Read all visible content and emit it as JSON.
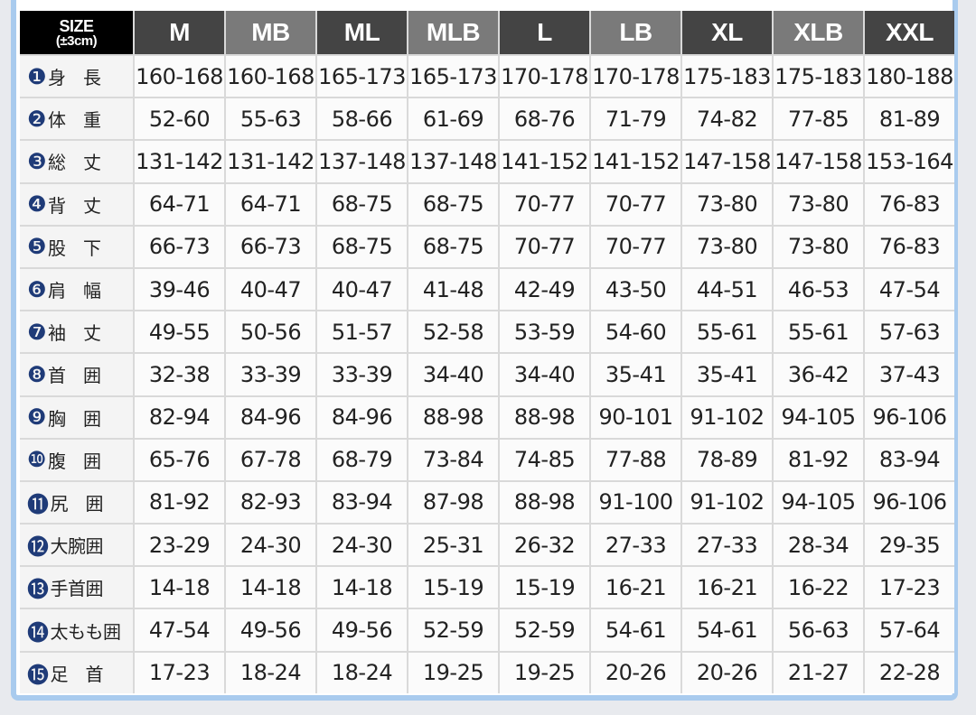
{
  "header": {
    "size_label": "SIZE",
    "tolerance": "(±3cm)",
    "columns": [
      "M",
      "MB",
      "ML",
      "MLB",
      "L",
      "LB",
      "XL",
      "XLB",
      "XXL"
    ]
  },
  "rows": [
    {
      "mark": "❶",
      "label": "身　長",
      "values": [
        "160-168",
        "160-168",
        "165-173",
        "165-173",
        "170-178",
        "170-178",
        "175-183",
        "175-183",
        "180-188"
      ]
    },
    {
      "mark": "❷",
      "label": "体　重",
      "values": [
        "52-60",
        "55-63",
        "58-66",
        "61-69",
        "68-76",
        "71-79",
        "74-82",
        "77-85",
        "81-89"
      ]
    },
    {
      "mark": "❸",
      "label": "総　丈",
      "values": [
        "131-142",
        "131-142",
        "137-148",
        "137-148",
        "141-152",
        "141-152",
        "147-158",
        "147-158",
        "153-164"
      ]
    },
    {
      "mark": "❹",
      "label": "背　丈",
      "values": [
        "64-71",
        "64-71",
        "68-75",
        "68-75",
        "70-77",
        "70-77",
        "73-80",
        "73-80",
        "76-83"
      ]
    },
    {
      "mark": "❺",
      "label": "股　下",
      "values": [
        "66-73",
        "66-73",
        "68-75",
        "68-75",
        "70-77",
        "70-77",
        "73-80",
        "73-80",
        "76-83"
      ]
    },
    {
      "mark": "❻",
      "label": "肩　幅",
      "values": [
        "39-46",
        "40-47",
        "40-47",
        "41-48",
        "42-49",
        "43-50",
        "44-51",
        "46-53",
        "47-54"
      ]
    },
    {
      "mark": "❼",
      "label": "袖　丈",
      "values": [
        "49-55",
        "50-56",
        "51-57",
        "52-58",
        "53-59",
        "54-60",
        "55-61",
        "55-61",
        "57-63"
      ]
    },
    {
      "mark": "❽",
      "label": "首　囲",
      "values": [
        "32-38",
        "33-39",
        "33-39",
        "34-40",
        "34-40",
        "35-41",
        "35-41",
        "36-42",
        "37-43"
      ]
    },
    {
      "mark": "❾",
      "label": "胸　囲",
      "values": [
        "82-94",
        "84-96",
        "84-96",
        "88-98",
        "88-98",
        "90-101",
        "91-102",
        "94-105",
        "96-106"
      ]
    },
    {
      "mark": "❿",
      "label": "腹　囲",
      "values": [
        "65-76",
        "67-78",
        "68-79",
        "73-84",
        "74-85",
        "77-88",
        "78-89",
        "81-92",
        "83-94"
      ]
    },
    {
      "mark": "⓫",
      "label": "尻　囲",
      "values": [
        "81-92",
        "82-93",
        "83-94",
        "87-98",
        "88-98",
        "91-100",
        "91-102",
        "94-105",
        "96-106"
      ]
    },
    {
      "mark": "⓬",
      "label": "大腕囲",
      "values": [
        "23-29",
        "24-30",
        "24-30",
        "25-31",
        "26-32",
        "27-33",
        "27-33",
        "28-34",
        "29-35"
      ]
    },
    {
      "mark": "⓭",
      "label": "手首囲",
      "values": [
        "14-18",
        "14-18",
        "14-18",
        "15-19",
        "15-19",
        "16-21",
        "16-21",
        "16-22",
        "17-23"
      ]
    },
    {
      "mark": "⓮",
      "label": "太もも囲",
      "values": [
        "47-54",
        "49-56",
        "49-56",
        "52-59",
        "52-59",
        "54-61",
        "54-61",
        "56-63",
        "57-64"
      ]
    },
    {
      "mark": "⓯",
      "label": "足　首",
      "values": [
        "17-23",
        "18-24",
        "18-24",
        "19-25",
        "19-25",
        "20-26",
        "20-26",
        "21-27",
        "22-28"
      ]
    }
  ]
}
